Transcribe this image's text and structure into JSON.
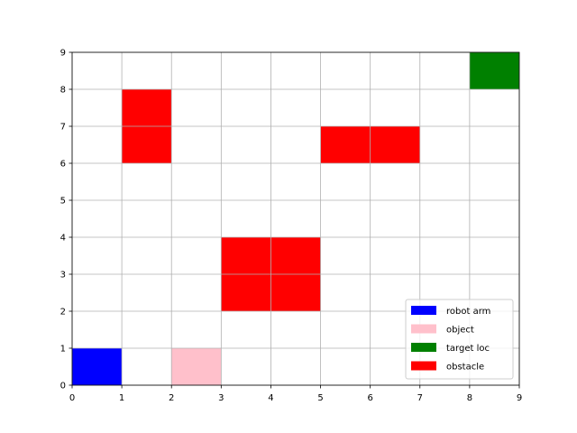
{
  "chart_data": {
    "type": "heatmap",
    "title": "",
    "xlabel": "",
    "ylabel": "",
    "xlim": [
      0,
      9
    ],
    "ylim": [
      0,
      9
    ],
    "xticks": [
      "0",
      "1",
      "2",
      "3",
      "4",
      "5",
      "6",
      "7",
      "8",
      "9"
    ],
    "yticks": [
      "0",
      "1",
      "2",
      "3",
      "4",
      "5",
      "6",
      "7",
      "8",
      "9"
    ],
    "grid": true,
    "legend_position": "lower-right",
    "categories": [
      {
        "key": "robot_arm",
        "label": "robot arm",
        "color": "#0000ff"
      },
      {
        "key": "object",
        "label": "object",
        "color": "#ffc0cb"
      },
      {
        "key": "target",
        "label": "target loc",
        "color": "#008000"
      },
      {
        "key": "obstacle",
        "label": "obstacle",
        "color": "#ff0000"
      }
    ],
    "cells": [
      {
        "category": "robot_arm",
        "x": 0,
        "y": 0
      },
      {
        "category": "object",
        "x": 2,
        "y": 0
      },
      {
        "category": "target",
        "x": 8,
        "y": 8
      },
      {
        "category": "obstacle",
        "x": 1,
        "y": 7
      },
      {
        "category": "obstacle",
        "x": 1,
        "y": 6
      },
      {
        "category": "obstacle",
        "x": 5,
        "y": 6
      },
      {
        "category": "obstacle",
        "x": 6,
        "y": 6
      },
      {
        "category": "obstacle",
        "x": 3,
        "y": 3
      },
      {
        "category": "obstacle",
        "x": 4,
        "y": 3
      },
      {
        "category": "obstacle",
        "x": 3,
        "y": 2
      },
      {
        "category": "obstacle",
        "x": 4,
        "y": 2
      }
    ]
  }
}
